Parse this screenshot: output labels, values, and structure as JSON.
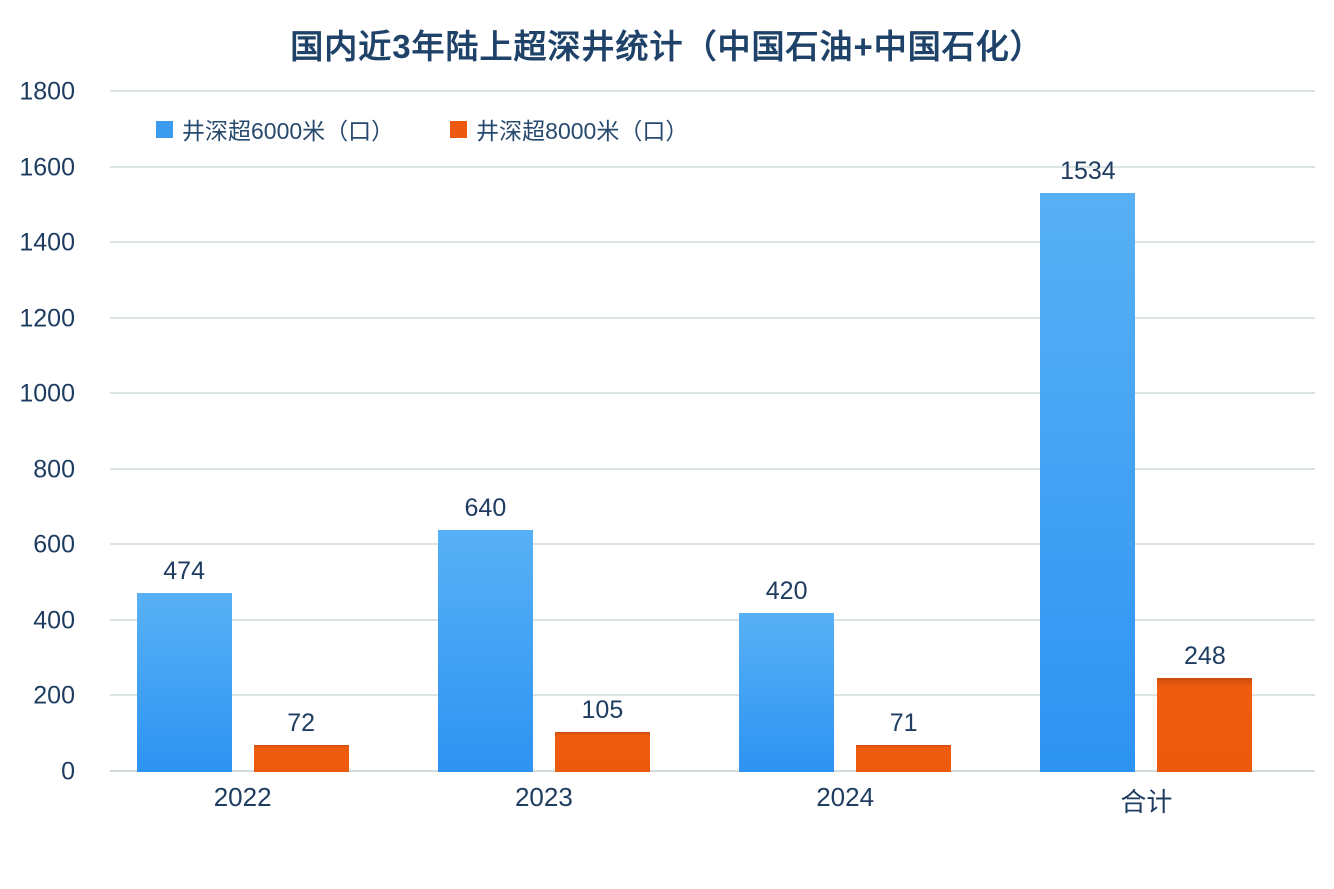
{
  "title": "国内近3年陆上超深井统计（中国石油+中国石化）",
  "chart_data": {
    "type": "bar",
    "title": "国内近3年陆上超深井统计（中国石油+中国石化）",
    "categories": [
      "2022",
      "2023",
      "2024",
      "合计"
    ],
    "series": [
      {
        "name": "井深超6000米（口）",
        "color": "#3B9BEF",
        "values": [
          474,
          640,
          420,
          1534
        ]
      },
      {
        "name": "井深超8000米（口）",
        "color": "#ED5A0F",
        "values": [
          72,
          105,
          71,
          248
        ]
      }
    ],
    "xlabel": "",
    "ylabel": "",
    "ylim": [
      0,
      1800
    ],
    "ytick_step": 200,
    "grid": true,
    "legend_position": "top-left"
  },
  "colors": {
    "title_text": "#1F4269",
    "axis_text": "#1E3C5F",
    "value_label_text": "#1F3C61",
    "gridline": "#DCE3E3",
    "series_blue": "#3B9BEF",
    "series_orange": "#ED5A0F",
    "background": "#FFFFFF"
  }
}
